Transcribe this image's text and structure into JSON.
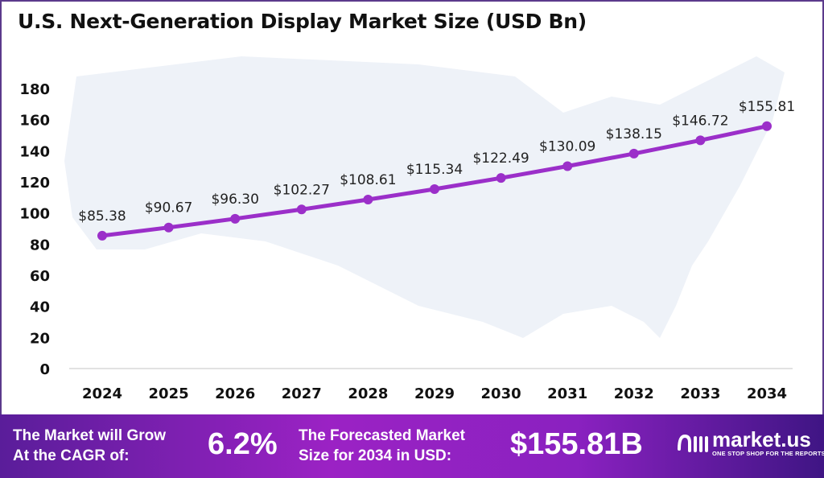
{
  "chart_data": {
    "type": "line",
    "title": "U.S. Next-Generation Display Market Size (USD Bn)",
    "categories": [
      "2024",
      "2025",
      "2026",
      "2027",
      "2028",
      "2029",
      "2030",
      "2031",
      "2032",
      "2033",
      "2034"
    ],
    "values": [
      85.38,
      90.67,
      96.3,
      102.27,
      108.61,
      115.34,
      122.49,
      130.09,
      138.15,
      146.72,
      155.81
    ],
    "data_labels": [
      "$85.38",
      "$90.67",
      "$96.30",
      "$102.27",
      "$108.61",
      "$115.34",
      "$122.49",
      "$130.09",
      "$138.15",
      "$146.72",
      "$155.81"
    ],
    "yticks": [
      "0",
      "20",
      "40",
      "60",
      "80",
      "100",
      "120",
      "140",
      "160",
      "180"
    ],
    "ylim": [
      0,
      180
    ],
    "grid": false,
    "legend": "none",
    "line_color": "#9b2fc9",
    "xlabel": "",
    "ylabel": ""
  },
  "banner": {
    "cagr_label_line1": "The Market will Grow",
    "cagr_label_line2": "At the CAGR of:",
    "cagr_value": "6.2%",
    "forecast_label_line1": "The Forecasted Market",
    "forecast_label_line2": "Size for 2034 in USD:",
    "forecast_value": "$155.81B",
    "logo_name": "market.us",
    "logo_tagline": "ONE STOP SHOP FOR THE REPORTS"
  }
}
